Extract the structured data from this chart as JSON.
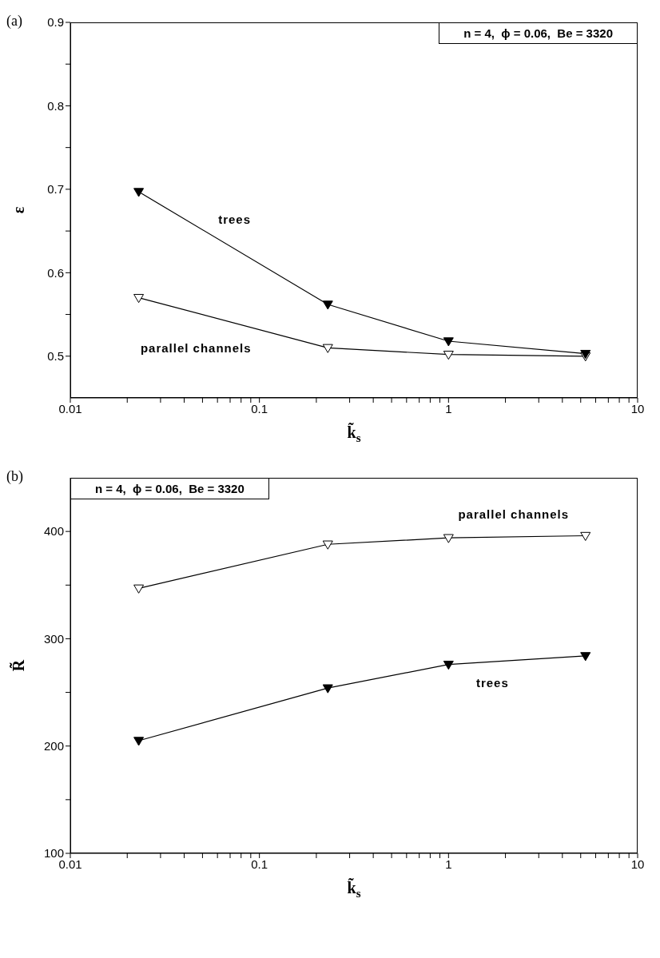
{
  "chart_data": [
    {
      "type": "line",
      "title": "(a)",
      "xlabel": "k̃$_{s}$",
      "ylabel": "ε",
      "annotations": [
        "n = 4,  ϕ = 0.06,  Be = 3320"
      ],
      "log": "x",
      "marker": "triangle",
      "line_style": "solid",
      "grid": false,
      "legend": false,
      "xlim": [
        0.01,
        10
      ],
      "xticks": [
        0.01,
        {
          "value": 0.02,
          "label": null
        },
        {
          "value": 0.03,
          "label": null
        },
        {
          "value": 0.04,
          "label": null
        },
        {
          "value": 0.05,
          "label": null
        },
        {
          "value": 0.06,
          "label": null
        },
        {
          "value": 0.07,
          "label": null
        },
        {
          "value": 0.08,
          "label": null
        },
        {
          "value": 0.09,
          "label": null
        },
        0.1,
        {
          "value": 0.2,
          "label": null
        },
        {
          "value": 0.3,
          "label": null
        },
        {
          "value": 0.4,
          "label": null
        },
        {
          "value": 0.5,
          "label": null
        },
        {
          "value": 0.6,
          "label": null
        },
        {
          "value": 0.7,
          "label": null
        },
        {
          "value": 0.8,
          "label": null
        },
        {
          "value": 0.9,
          "label": null
        },
        1,
        {
          "value": 2,
          "label": null
        },
        {
          "value": 3,
          "label": null
        },
        {
          "value": 4,
          "label": null
        },
        {
          "value": 5,
          "label": null
        },
        {
          "value": 6,
          "label": null
        },
        {
          "value": 7,
          "label": null
        },
        {
          "value": 8,
          "label": null
        },
        {
          "value": 9,
          "label": null
        },
        10
      ],
      "ylim": [
        0.45,
        0.9
      ],
      "yticks": [
        0.5,
        {
          "value": 0.55,
          "label": null
        },
        0.6,
        {
          "value": 0.65,
          "label": null
        },
        0.7,
        {
          "value": 0.75,
          "label": null
        },
        0.8,
        {
          "value": 0.85,
          "label": null
        },
        0.9
      ],
      "x": [
        0.023,
        0.23,
        1,
        5.3
      ],
      "series": [
        {
          "name": "parallel channels",
          "color": "#ffffff",
          "values": [
            0.57,
            0.51,
            0.502,
            0.5
          ]
        },
        {
          "name": "trees",
          "color": "#000000",
          "values": [
            0.697,
            0.562,
            0.518,
            0.503
          ]
        }
      ]
    },
    {
      "type": "line",
      "title": "(b)",
      "xlabel": "k̃$_{s}$",
      "ylabel": "R̃",
      "annotations": [
        "n = 4,  ϕ = 0.06,  Be = 3320"
      ],
      "log": "x",
      "marker": "triangle",
      "line_style": "solid",
      "grid": false,
      "legend": false,
      "xlim": [
        0.01,
        10
      ],
      "xticks": [
        0.01,
        {
          "value": 0.02,
          "label": null
        },
        {
          "value": 0.03,
          "label": null
        },
        {
          "value": 0.04,
          "label": null
        },
        {
          "value": 0.05,
          "label": null
        },
        {
          "value": 0.06,
          "label": null
        },
        {
          "value": 0.07,
          "label": null
        },
        {
          "value": 0.08,
          "label": null
        },
        {
          "value": 0.09,
          "label": null
        },
        0.1,
        {
          "value": 0.2,
          "label": null
        },
        {
          "value": 0.3,
          "label": null
        },
        {
          "value": 0.4,
          "label": null
        },
        {
          "value": 0.5,
          "label": null
        },
        {
          "value": 0.6,
          "label": null
        },
        {
          "value": 0.7,
          "label": null
        },
        {
          "value": 0.8,
          "label": null
        },
        {
          "value": 0.9,
          "label": null
        },
        1,
        {
          "value": 2,
          "label": null
        },
        {
          "value": 3,
          "label": null
        },
        {
          "value": 4,
          "label": null
        },
        {
          "value": 5,
          "label": null
        },
        {
          "value": 6,
          "label": null
        },
        {
          "value": 7,
          "label": null
        },
        {
          "value": 8,
          "label": null
        },
        {
          "value": 9,
          "label": null
        },
        10
      ],
      "ylim": [
        100,
        450
      ],
      "yticks": [
        100,
        {
          "value": 150,
          "label": null
        },
        200,
        {
          "value": 250,
          "label": null
        },
        300,
        {
          "value": 350,
          "label": null
        },
        400
      ],
      "x": [
        0.023,
        0.23,
        1,
        5.3
      ],
      "series": [
        {
          "name": "parallel channels",
          "color": "#ffffff",
          "values": [
            347,
            388,
            394,
            396
          ]
        },
        {
          "name": "trees",
          "color": "#000000",
          "values": [
            205,
            254,
            276,
            284
          ]
        }
      ]
    }
  ]
}
